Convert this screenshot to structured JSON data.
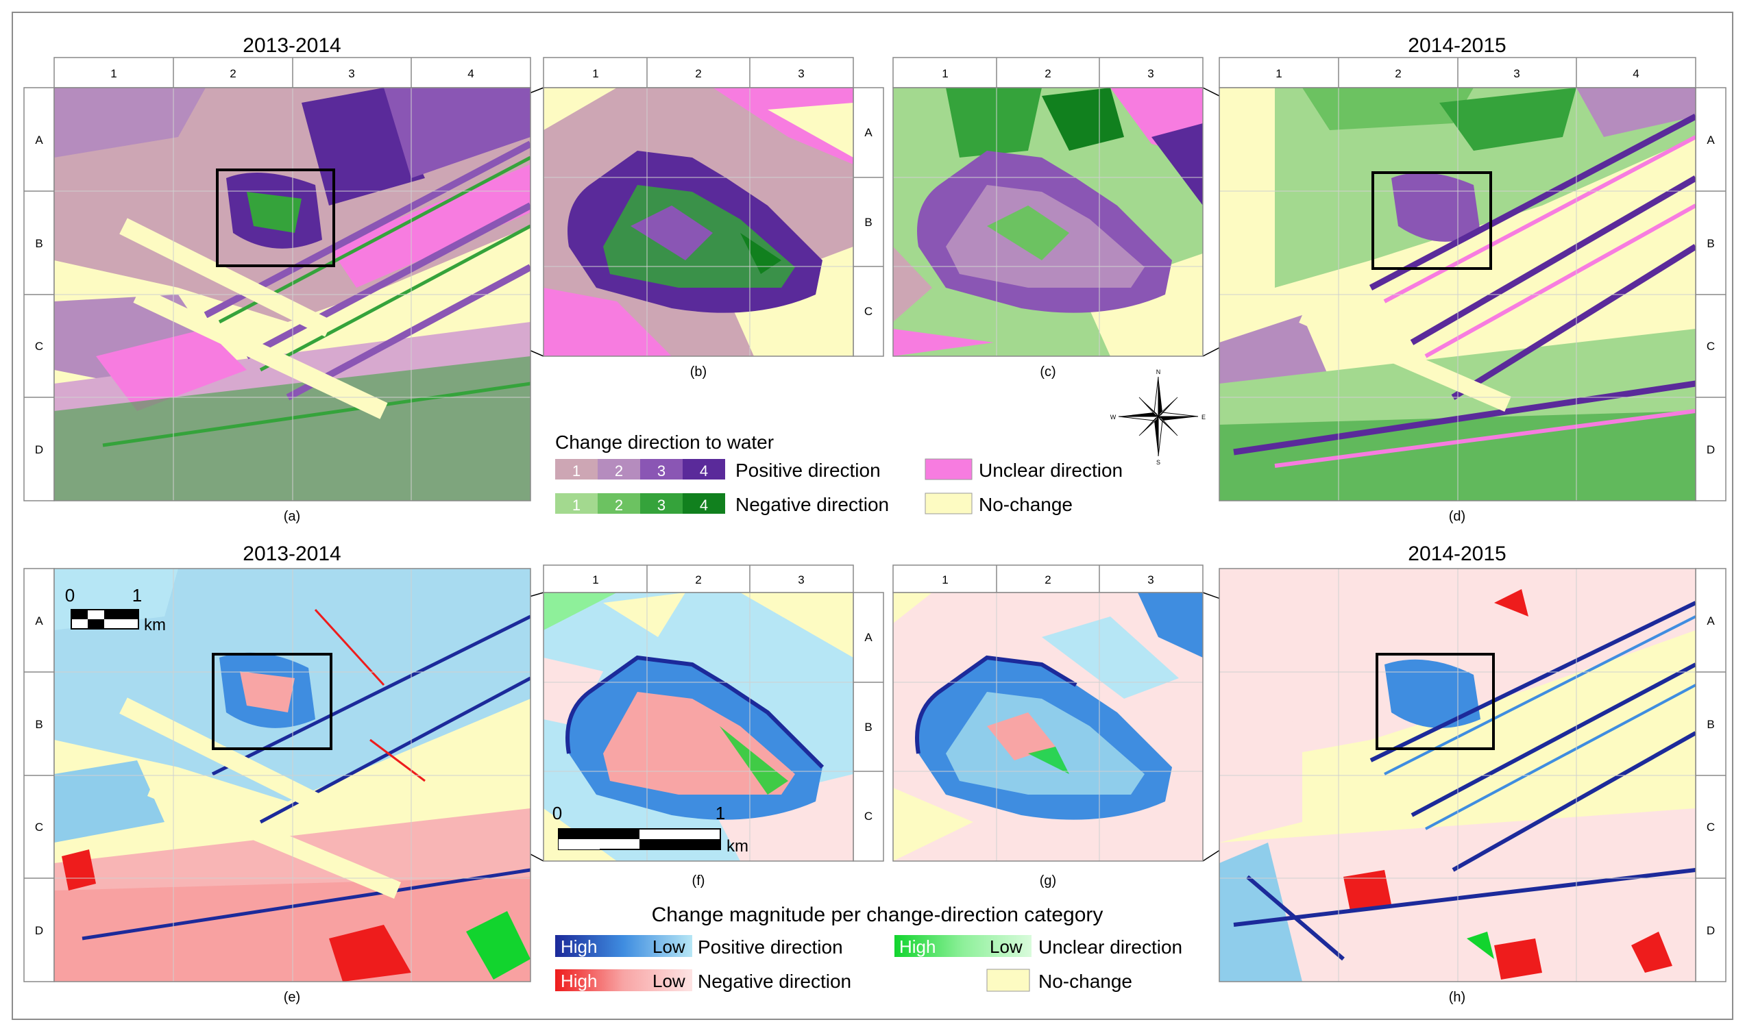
{
  "titles": {
    "a": "2013-2014",
    "d": "2014-2015",
    "e": "2013-2014",
    "h": "2014-2015"
  },
  "captions": [
    "(a)",
    "(b)",
    "(c)",
    "(d)",
    "(e)",
    "(f)",
    "(g)",
    "(h)"
  ],
  "grid": {
    "cols4": [
      "1",
      "2",
      "3",
      "4"
    ],
    "cols3": [
      "1",
      "2",
      "3"
    ],
    "rows4": [
      "A",
      "B",
      "C",
      "D"
    ],
    "rows3": [
      "A",
      "B",
      "C"
    ]
  },
  "scalebars": {
    "e": {
      "start": "0",
      "end": "1",
      "unit": "km"
    },
    "f": {
      "start": "0",
      "end": "1",
      "unit": "km"
    }
  },
  "compass": {
    "n": "N",
    "s": "S",
    "e": "E",
    "w": "W"
  },
  "legend_direction": {
    "title": "Change direction to water",
    "classes": [
      "1",
      "2",
      "3",
      "4"
    ],
    "positive_label": "Positive direction",
    "negative_label": "Negative direction",
    "unclear_label": "Unclear direction",
    "nochange_label": "No-change",
    "positive_colors": [
      "#cda6b4",
      "#b58cbe",
      "#8a56b4",
      "#5a2a9a"
    ],
    "negative_colors": [
      "#a3d98f",
      "#6cc261",
      "#35a33b",
      "#11801e"
    ],
    "unclear_color": "#f77ce0",
    "nochange_color": "#fdfbc2"
  },
  "legend_magnitude": {
    "title": "Change magnitude per change-direction category",
    "high": "High",
    "low": "Low",
    "positive_label": "Positive direction",
    "negative_label": "Negative direction",
    "unclear_label": "Unclear direction",
    "nochange_label": "No-change",
    "positive_gradient": [
      "#1c2a9a",
      "#3f8de0",
      "#b6e6f5"
    ],
    "negative_gradient": [
      "#ee1c1c",
      "#f8a5a5",
      "#fde3e3"
    ],
    "unclear_gradient": [
      "#12d42e",
      "#8ef09a",
      "#d9fbdc"
    ],
    "nochange_color": "#fdfbc2"
  }
}
